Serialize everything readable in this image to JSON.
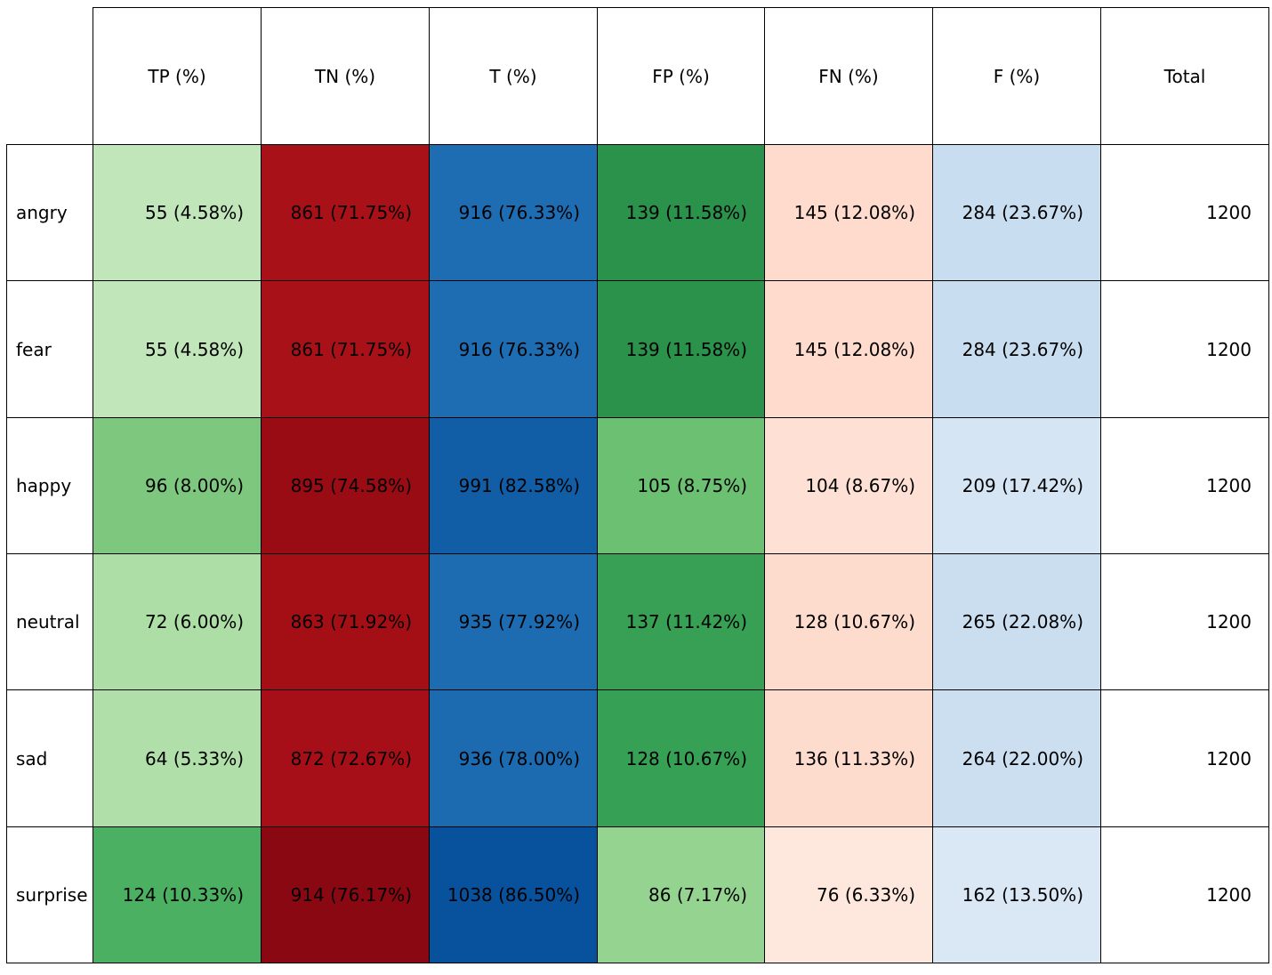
{
  "chart_data": {
    "type": "table",
    "columns": [
      "TP (%)",
      "TN (%)",
      "T (%)",
      "FP (%)",
      "FN (%)",
      "F (%)",
      "Total"
    ],
    "rows": [
      {
        "label": "angry",
        "cells": [
          "55 (4.58%)",
          "861 (71.75%)",
          "916 (76.33%)",
          "139 (11.58%)",
          "145 (12.08%)",
          "284 (23.67%)",
          "1200"
        ]
      },
      {
        "label": "fear",
        "cells": [
          "55 (4.58%)",
          "861 (71.75%)",
          "916 (76.33%)",
          "139 (11.58%)",
          "145 (12.08%)",
          "284 (23.67%)",
          "1200"
        ]
      },
      {
        "label": "happy",
        "cells": [
          "96 (8.00%)",
          "895 (74.58%)",
          "991 (82.58%)",
          "105 (8.75%)",
          "104 (8.67%)",
          "209 (17.42%)",
          "1200"
        ]
      },
      {
        "label": "neutral",
        "cells": [
          "72 (6.00%)",
          "863 (71.92%)",
          "935 (77.92%)",
          "137 (11.42%)",
          "128 (10.67%)",
          "265 (22.08%)",
          "1200"
        ]
      },
      {
        "label": "sad",
        "cells": [
          "64 (5.33%)",
          "872 (72.67%)",
          "936 (78.00%)",
          "128 (10.67%)",
          "136 (11.33%)",
          "264 (22.00%)",
          "1200"
        ]
      },
      {
        "label": "surprise",
        "cells": [
          "124 (10.33%)",
          "914 (76.17%)",
          "1038 (86.50%)",
          "86 (7.17%)",
          "76 (6.33%)",
          "162 (13.50%)",
          "1200"
        ]
      }
    ],
    "cell_colors": [
      [
        "#c0e6b9",
        "#a81118",
        "#1e6db2",
        "#2b924b",
        "#fedbcc",
        "#c8ddf0",
        "#ffffff"
      ],
      [
        "#c0e6b9",
        "#a81118",
        "#1e6db2",
        "#2b924b",
        "#fedbcc",
        "#c8ddf0",
        "#ffffff"
      ],
      [
        "#7dc87e",
        "#990c14",
        "#125ea6",
        "#6cc072",
        "#fee1d4",
        "#d5e5f4",
        "#ffffff"
      ],
      [
        "#acdea6",
        "#a40f16",
        "#1d6cb1",
        "#37a055",
        "#fedccd",
        "#cadef0",
        "#ffffff"
      ],
      [
        "#b0dfaa",
        "#a60f17",
        "#1c6bb0",
        "#36a055",
        "#fedccd",
        "#cbdff1",
        "#ffffff"
      ],
      [
        "#4bb062",
        "#8a0812",
        "#08519c",
        "#94d390",
        "#fee7dc",
        "#dae8f6",
        "#ffffff"
      ]
    ]
  }
}
